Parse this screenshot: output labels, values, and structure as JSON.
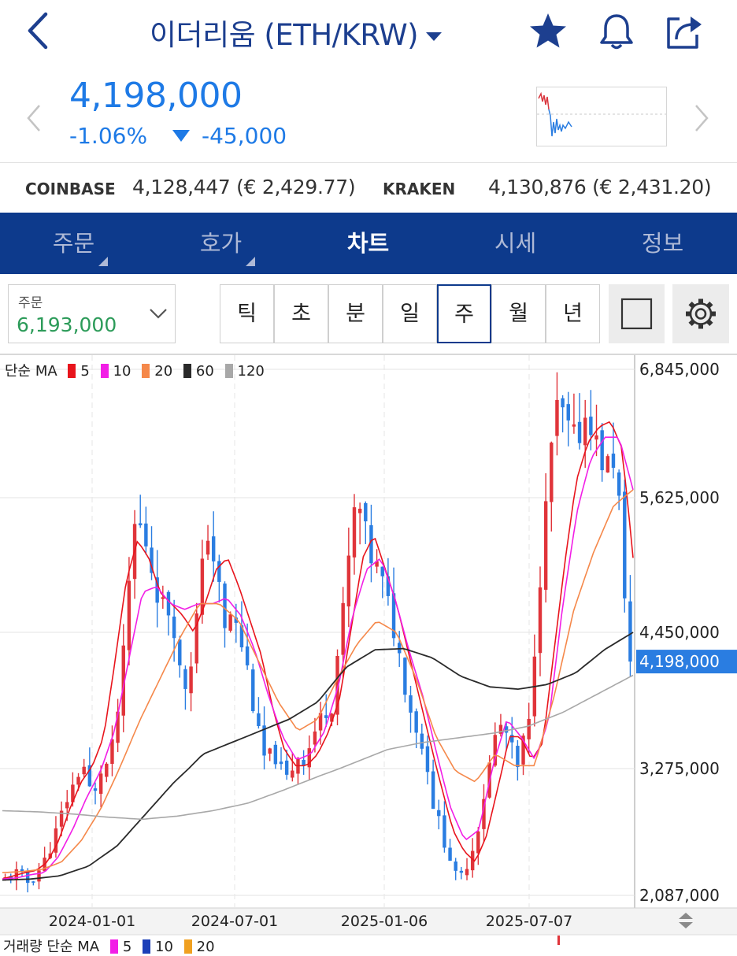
{
  "header": {
    "title": "이더리움 (ETH/KRW)",
    "icons": [
      "back-chevron-icon",
      "star-icon",
      "bell-icon",
      "share-icon"
    ]
  },
  "quote": {
    "price": "4,198,000",
    "change_percent": "-1.06%",
    "change_amount": "-45,000",
    "color": "#1e7ae6"
  },
  "exchanges": [
    {
      "name": "COINBASE",
      "value": "4,128,447 (€ 2,429.77)"
    },
    {
      "name": "KRAKEN",
      "value": "4,130,876 (€ 2,431.20)"
    }
  ],
  "tabs": [
    {
      "label": "주문",
      "active": false
    },
    {
      "label": "호가",
      "active": false
    },
    {
      "label": "차트",
      "active": true
    },
    {
      "label": "시세",
      "active": false
    },
    {
      "label": "정보",
      "active": false
    }
  ],
  "order": {
    "label": "주문",
    "value": "6,193,000"
  },
  "periods": [
    {
      "label": "틱",
      "selected": false
    },
    {
      "label": "초",
      "selected": false
    },
    {
      "label": "분",
      "selected": false
    },
    {
      "label": "일",
      "selected": false
    },
    {
      "label": "주",
      "selected": true
    },
    {
      "label": "월",
      "selected": false
    },
    {
      "label": "년",
      "selected": false
    }
  ],
  "colors": {
    "brand": "#0d3a8c",
    "up": "#e0343a",
    "down": "#2a7de1",
    "order_value": "#2c9b59"
  },
  "chart_legend": {
    "prefix": "단순 MA",
    "items": [
      {
        "label": "5",
        "color": "#e8141c"
      },
      {
        "label": "10",
        "color": "#f21ee6"
      },
      {
        "label": "20",
        "color": "#f5884a"
      },
      {
        "label": "60",
        "color": "#2a2a2a"
      },
      {
        "label": "120",
        "color": "#a8a8a8"
      }
    ]
  },
  "volume_legend": {
    "prefix": "거래량 단순 MA",
    "items": [
      {
        "label": "5",
        "color": "#f21ee6"
      },
      {
        "label": "10",
        "color": "#1c3fb8"
      },
      {
        "label": "20",
        "color": "#f0a020"
      }
    ]
  },
  "chart_data": {
    "type": "candlestick",
    "y_ticks": [
      "6,845,000",
      "5,625,000",
      "4,450,000",
      "3,275,000",
      "2,087,000"
    ],
    "y_tick_values": [
      6845000,
      5625000,
      4450000,
      3275000,
      2087000
    ],
    "x_ticks": [
      "2024-01-01",
      "2024-07-01",
      "2025-01-06",
      "2025-07-07"
    ],
    "current_price_label": "4,198,000",
    "current_price": 4198000,
    "ylim": [
      2087000,
      6845000
    ],
    "grid": true,
    "close_path": [
      2240000,
      2270000,
      2300000,
      2250000,
      2200000,
      2280000,
      2350000,
      2450000,
      2600000,
      2750000,
      2950000,
      3050000,
      3200000,
      3350000,
      3100000,
      3000000,
      3250000,
      3300000,
      3450000,
      3800000,
      4300000,
      5000000,
      5500000,
      5300000,
      5200000,
      4900000,
      4750000,
      4600000,
      4700000,
      4200000,
      3950000,
      4150000,
      4500000,
      4950000,
      5350000,
      5100000,
      4800000,
      4400000,
      4650000,
      4450000,
      4300000,
      4050000,
      3700000,
      3450000,
      3300000,
      3450000,
      3300000,
      3150000,
      3250000,
      3400000,
      3350000,
      3450000,
      3600000,
      3700000,
      3800000,
      3850000,
      4350000,
      4700000,
      5250000,
      5600000,
      5450000,
      5150000,
      5050000,
      4950000,
      4750000,
      4550000,
      4300000,
      4050000,
      3800000,
      3650000,
      3450000,
      3300000,
      2900000,
      2750000,
      2550000,
      2400000,
      2200000,
      2300000,
      2450000,
      2600000,
      2900000,
      3200000,
      3500000,
      3650000,
      3600000,
      3450000,
      3250000,
      3500000,
      3650000,
      4400000,
      5050000,
      5600000,
      6300000,
      6500000,
      6350000,
      6200000,
      6150000,
      6350000,
      6450000,
      6200000,
      6000000,
      5900000,
      6050000,
      5700000,
      4700000,
      4198000
    ],
    "moving_averages": [
      {
        "name": "5",
        "path": [
          2240000,
          2270000,
          2300000,
          2320000,
          2400000,
          2600000,
          2900000,
          3150000,
          3300000,
          3550000,
          4200000,
          4900000,
          5250000,
          5100000,
          4800000,
          4700000,
          4600000,
          4450000,
          4700000,
          5000000,
          5100000,
          4850000,
          4550000,
          4250000,
          3800000,
          3450000,
          3300000,
          3300000,
          3400000,
          3600000,
          3900000,
          4500000,
          5100000,
          5300000,
          5000000,
          4700000,
          4300000,
          3900000,
          3500000,
          3100000,
          2700000,
          2500000,
          2400000,
          2650000,
          3100000,
          3550000,
          3550000,
          3350000,
          3500000,
          4300000,
          5100000,
          5800000,
          6150000,
          6300000,
          6350000,
          6100000,
          5100000
        ]
      },
      {
        "name": "10",
        "path": [
          2240000,
          2250000,
          2280000,
          2300000,
          2450000,
          2700000,
          3000000,
          3250000,
          3600000,
          4200000,
          4800000,
          4850000,
          4700000,
          4650000,
          4700000,
          4700000,
          4750000,
          4600000,
          4300000,
          3900000,
          3550000,
          3350000,
          3400000,
          3600000,
          4000000,
          4600000,
          5000000,
          5100000,
          4750000,
          4300000,
          3900000,
          3400000,
          2900000,
          2600000,
          2700000,
          3300000,
          3700000,
          3550000,
          3350000,
          3700000,
          4700000,
          5500000,
          6000000,
          6200000,
          6200000,
          5700000
        ]
      },
      {
        "name": "20",
        "path": [
          2300000,
          2310000,
          2330000,
          2400000,
          2600000,
          2900000,
          3300000,
          3700000,
          4050000,
          4400000,
          4700000,
          4700000,
          4550000,
          4200000,
          3850000,
          3600000,
          3700000,
          4050000,
          4350000,
          4550000,
          4450000,
          4050000,
          3550000,
          3250000,
          3150000,
          3400000,
          3300000,
          3300000,
          3900000,
          4650000,
          5150000,
          5550000,
          5700000
        ]
      },
      {
        "name": "60",
        "path": [
          2230000,
          2240000,
          2270000,
          2360000,
          2550000,
          2850000,
          3150000,
          3400000,
          3500000,
          3600000,
          3700000,
          3850000,
          4150000,
          4300000,
          4310000,
          4230000,
          4070000,
          3980000,
          3960000,
          4000000,
          4100000,
          4300000,
          4450000
        ]
      },
      {
        "name": "120",
        "path": [
          2880000,
          2870000,
          2850000,
          2820000,
          2800000,
          2830000,
          2880000,
          2950000,
          3070000,
          3200000,
          3320000,
          3440000,
          3500000,
          3540000,
          3580000,
          3640000,
          3760000,
          3920000,
          4080000
        ]
      }
    ]
  }
}
